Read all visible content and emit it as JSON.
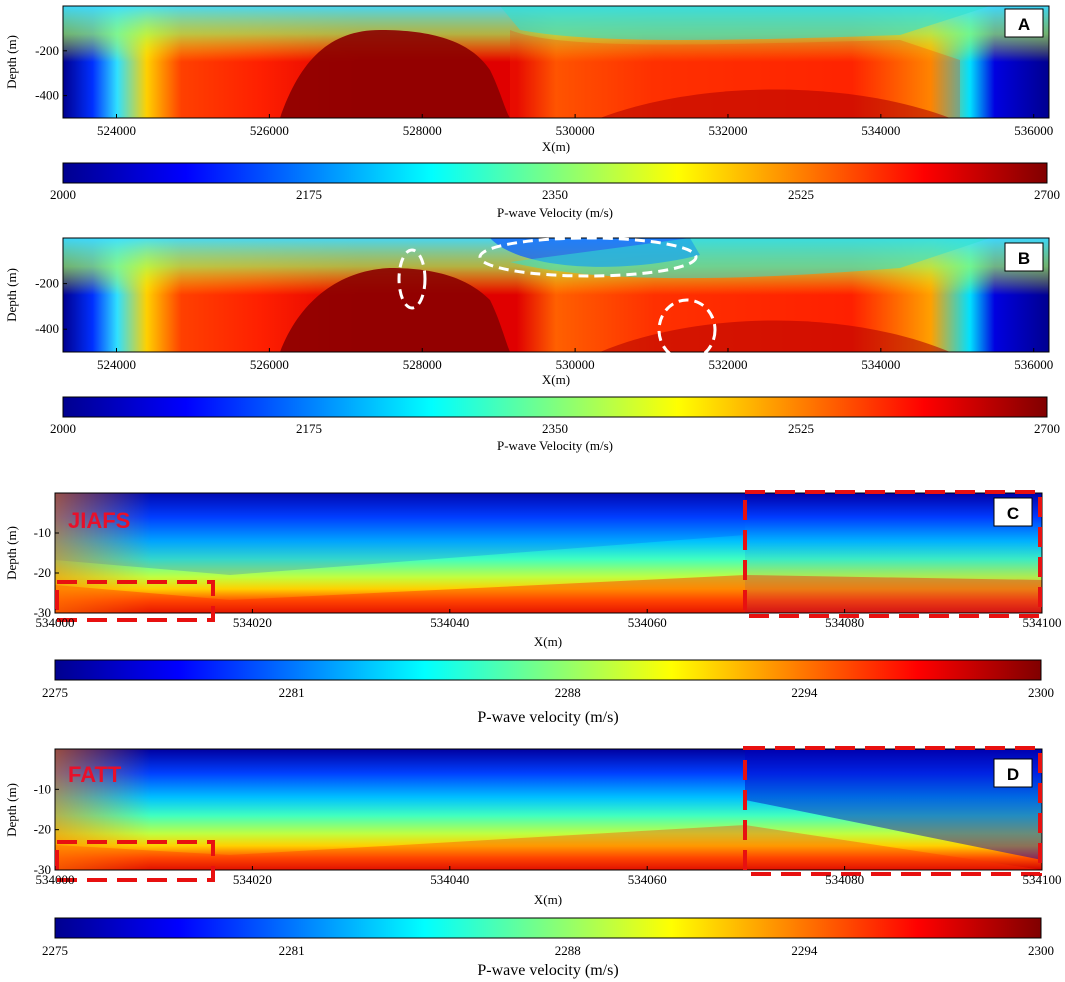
{
  "chart_data": [
    {
      "panel": "A",
      "type": "heatmap",
      "xlabel": "X(m)",
      "ylabel": "Depth (m)",
      "xlim": [
        523300,
        536200
      ],
      "ylim": [
        -500,
        0
      ],
      "xticks": [
        "524000",
        "526000",
        "528000",
        "530000",
        "532000",
        "534000",
        "536000"
      ],
      "yticks": [
        "-200",
        "-400"
      ],
      "colorbar": {
        "label": "P-wave Velocity (m/s)",
        "range": [
          2000,
          2700
        ],
        "ticks": [
          "2000",
          "2175",
          "2350",
          "2525",
          "2700"
        ],
        "colormap": "jet"
      },
      "notes": "Low-velocity margins below x~524500 and above x~535500; high-velocity core (~2700 m/s) between x~526500 and x~529000 at depth; shallow low-velocity zone 529000-533000"
    },
    {
      "panel": "B",
      "type": "heatmap",
      "xlabel": "X(m)",
      "ylabel": "Depth (m)",
      "xlim": [
        523300,
        536200
      ],
      "ylim": [
        -500,
        0
      ],
      "xticks": [
        "524000",
        "526000",
        "528000",
        "530000",
        "532000",
        "534000",
        "536000"
      ],
      "yticks": [
        "-200",
        "-400"
      ],
      "colorbar": {
        "label": "P-wave Velocity (m/s)",
        "range": [
          2000,
          2700
        ],
        "ticks": [
          "2000",
          "2175",
          "2350",
          "2525",
          "2700"
        ],
        "colormap": "jet"
      },
      "annotations": [
        {
          "shape": "ellipse",
          "style": "white-dashed",
          "center": [
            527900,
            -230
          ],
          "radii": [
            150,
            80
          ]
        },
        {
          "shape": "ellipse",
          "style": "white-dashed",
          "center": [
            530700,
            -20
          ],
          "radii": [
            1600,
            50
          ]
        },
        {
          "shape": "ellipse",
          "style": "white-dashed",
          "center": [
            531500,
            -430
          ],
          "radii": [
            450,
            120
          ]
        }
      ]
    },
    {
      "panel": "C",
      "type": "heatmap",
      "label": "JIAFS",
      "xlabel": "X(m)",
      "ylabel": "Depth (m)",
      "xlim": [
        534000,
        534100
      ],
      "ylim": [
        -30,
        0
      ],
      "xticks": [
        "534000",
        "534020",
        "534040",
        "534060",
        "534080",
        "534100"
      ],
      "yticks": [
        "-10",
        "-20",
        "-30"
      ],
      "colorbar": {
        "label": "P-wave velocity (m/s)",
        "range": [
          2275,
          2300
        ],
        "ticks": [
          "2275",
          "2281",
          "2288",
          "2294",
          "2300"
        ],
        "colormap": "jet"
      },
      "annotations": [
        {
          "shape": "rect",
          "style": "red-dashed",
          "x": [
            534000,
            534016
          ],
          "y": [
            -32,
            -23
          ]
        },
        {
          "shape": "rect",
          "style": "red-dashed",
          "x": [
            534070,
            534100
          ],
          "y": [
            -31,
            0
          ]
        }
      ]
    },
    {
      "panel": "D",
      "type": "heatmap",
      "label": "FATT",
      "xlabel": "X(m)",
      "ylabel": "Depth (m)",
      "xlim": [
        534000,
        534100
      ],
      "ylim": [
        -30,
        0
      ],
      "xticks": [
        "534000",
        "534020",
        "534040",
        "534060",
        "534080",
        "534100"
      ],
      "yticks": [
        "-10",
        "-20",
        "-30"
      ],
      "colorbar": {
        "label": "P-wave velocity (m/s)",
        "range": [
          2275,
          2300
        ],
        "ticks": [
          "2275",
          "2281",
          "2288",
          "2294",
          "2300"
        ],
        "colormap": "jet"
      },
      "annotations": [
        {
          "shape": "rect",
          "style": "red-dashed",
          "x": [
            534000,
            534016
          ],
          "y": [
            -32,
            -23
          ]
        },
        {
          "shape": "rect",
          "style": "red-dashed",
          "x": [
            534070,
            534100
          ],
          "y": [
            -31,
            0
          ]
        }
      ]
    }
  ]
}
